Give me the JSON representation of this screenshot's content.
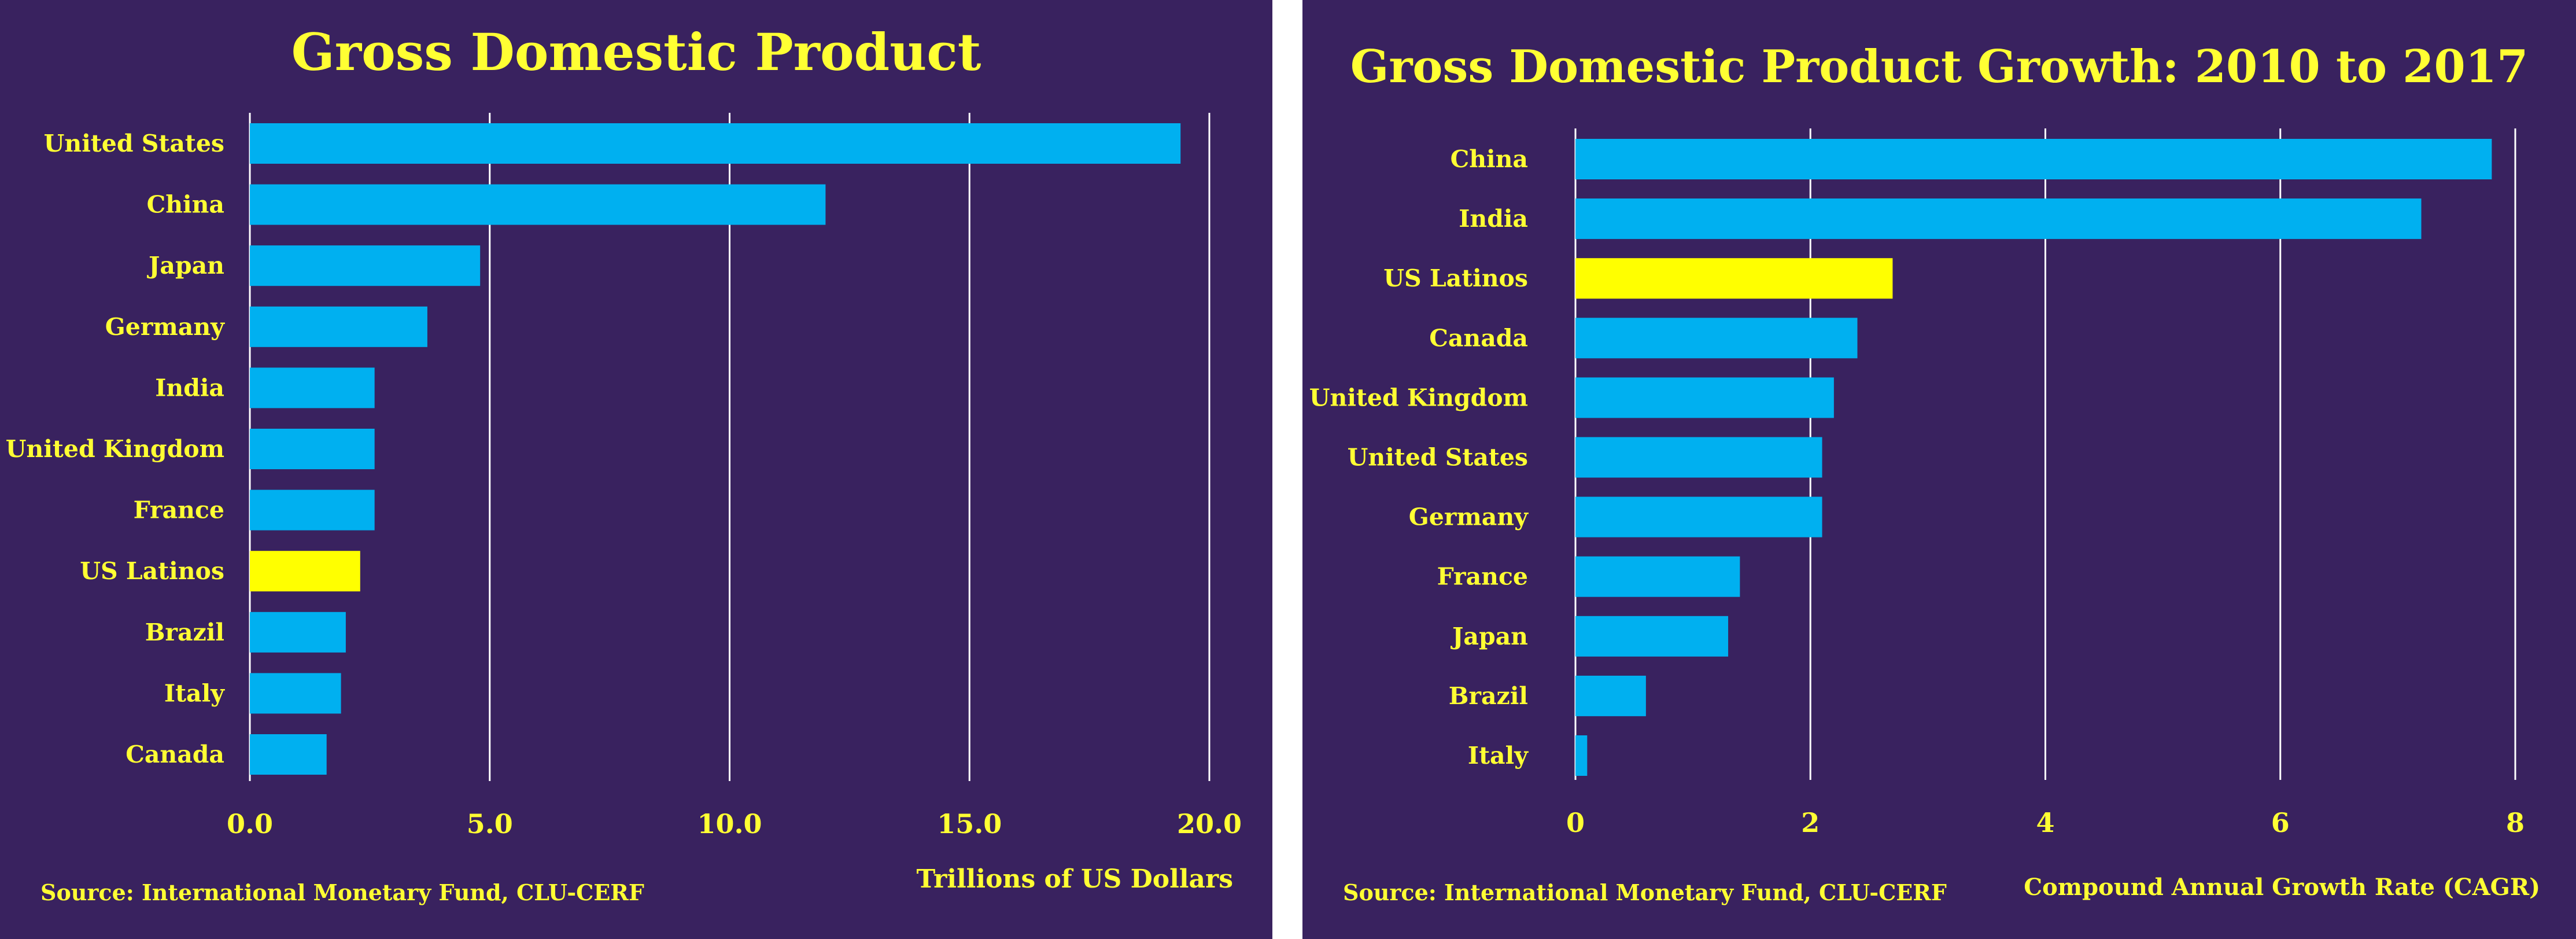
{
  "colors": {
    "background": "#39225f",
    "bar": "#00b0f0",
    "highlight": "#ffff00",
    "text": "#ffff33",
    "grid": "#ffffff"
  },
  "chart_data": [
    {
      "type": "bar",
      "orientation": "horizontal",
      "title": "Gross Domestic Product",
      "xlabel": "Trillions of US Dollars",
      "source": "Source: International Monetary Fund, CLU-CERF",
      "categories": [
        "United States",
        "China",
        "Japan",
        "Germany",
        "India",
        "United Kingdom",
        "France",
        "US Latinos",
        "Brazil",
        "Italy",
        "Canada"
      ],
      "values": [
        19.4,
        12.0,
        4.8,
        3.7,
        2.6,
        2.6,
        2.6,
        2.3,
        2.0,
        1.9,
        1.6
      ],
      "highlight": "US Latinos",
      "xlim": [
        0,
        20
      ],
      "xticks": [
        0,
        5,
        10,
        15,
        20
      ],
      "xtick_labels": [
        "0.0",
        "5.0",
        "10.0",
        "15.0",
        "20.0"
      ],
      "grid": true
    },
    {
      "type": "bar",
      "orientation": "horizontal",
      "title": "Gross Domestic Product Growth: 2010 to 2017",
      "xlabel": "Compound Annual Growth Rate (CAGR)",
      "source": "Source: International Monetary Fund, CLU-CERF",
      "categories": [
        "China",
        "India",
        "US Latinos",
        "Canada",
        "United Kingdom",
        "United States",
        "Germany",
        "France",
        "Japan",
        "Brazil",
        "Italy"
      ],
      "values": [
        7.8,
        7.2,
        2.7,
        2.4,
        2.2,
        2.1,
        2.1,
        1.4,
        1.3,
        0.6,
        0.1
      ],
      "highlight": "US Latinos",
      "xlim": [
        0,
        8
      ],
      "xticks": [
        0,
        2,
        4,
        6,
        8
      ],
      "xtick_labels": [
        "0",
        "2",
        "4",
        "6",
        "8"
      ],
      "grid": true
    }
  ]
}
